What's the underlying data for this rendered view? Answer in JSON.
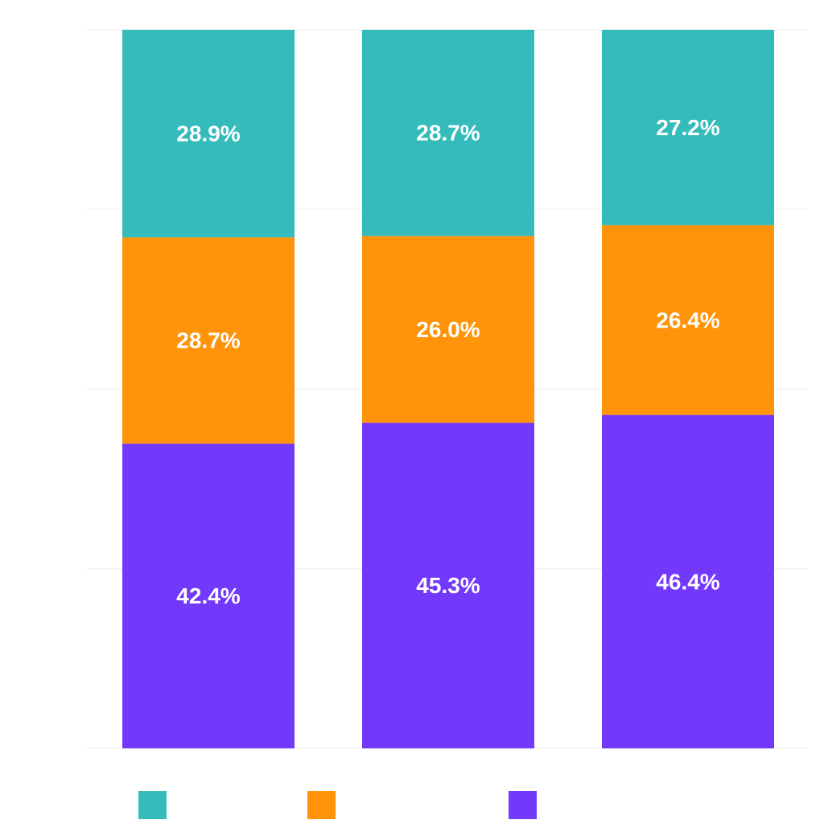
{
  "chart_data": {
    "type": "bar",
    "stacked": true,
    "normalized": true,
    "categories": [
      "",
      "",
      ""
    ],
    "series": [
      {
        "name": "",
        "color": "#7239fb",
        "values": [
          42.4,
          45.3,
          46.4
        ],
        "labels": [
          "42.4%",
          "45.3%",
          "46.4%"
        ]
      },
      {
        "name": "",
        "color": "#ff930a",
        "values": [
          28.7,
          26.0,
          26.4
        ],
        "labels": [
          "28.7%",
          "26.0%",
          "26.4%"
        ]
      },
      {
        "name": "",
        "color": "#34bbba",
        "values": [
          28.9,
          28.7,
          27.2
        ],
        "labels": [
          "28.9%",
          "28.7%",
          "27.2%"
        ]
      }
    ],
    "title": "",
    "xlabel": "",
    "ylabel": "",
    "ylim": [
      0,
      100
    ],
    "grid": true,
    "legend_position": "bottom"
  }
}
